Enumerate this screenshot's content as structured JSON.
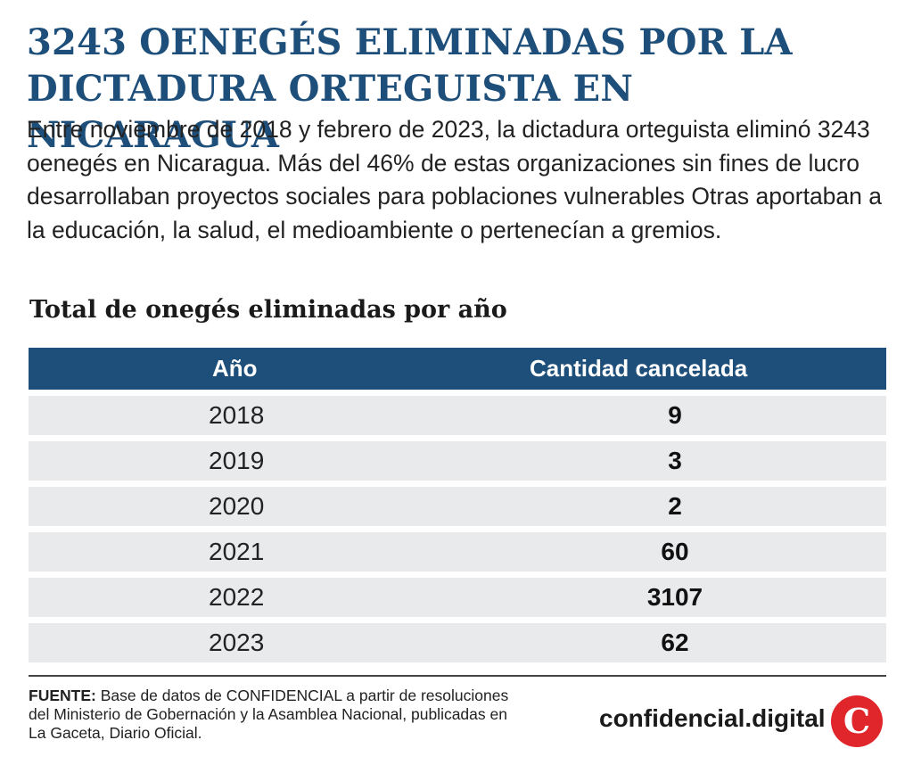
{
  "header": {
    "title_line1": "3243 OENEGÉS ELIMINADAS POR LA",
    "title_line2": "DICTADURA ORTEGUISTA EN NICARAGUA",
    "intro": "Entre noviembre de 2018 y febrero de 2023, la dictadura orteguista eliminó 3243 oenegés en Nicaragua. Más del 46% de estas organizaciones sin fines de lucro desarrollaban proyectos sociales para poblaciones vulnerables Otras aportaban a la educación, la salud, el medioambiente o pertenecían a gremios."
  },
  "table": {
    "title": "Total de onegés eliminadas por año",
    "col_year": "Año",
    "col_qty": "Cantidad cancelada"
  },
  "chart_data": {
    "type": "table",
    "title": "Total de onegés eliminadas por año",
    "columns": [
      "Año",
      "Cantidad cancelada"
    ],
    "rows": [
      [
        "2018",
        "9"
      ],
      [
        "2019",
        "3"
      ],
      [
        "2020",
        "2"
      ],
      [
        "2021",
        "60"
      ],
      [
        "2022",
        "3107"
      ],
      [
        "2023",
        "62"
      ]
    ]
  },
  "footer": {
    "source_label": "FUENTE:",
    "source_text": "Base de datos de CONFIDENCIAL a partir de resoluciones del Ministerio de Gobernación y la Asamblea Nacional, publicadas en La Gaceta, Diario Oficial.",
    "brand": "confidencial.digital",
    "logo_letter": "C"
  },
  "colors": {
    "accent": "#1d4f7a",
    "row_bg": "#e9eaec",
    "logo_red": "#e0262b"
  },
  "icons": {
    "logo": "confidencial-c-logo-icon"
  }
}
